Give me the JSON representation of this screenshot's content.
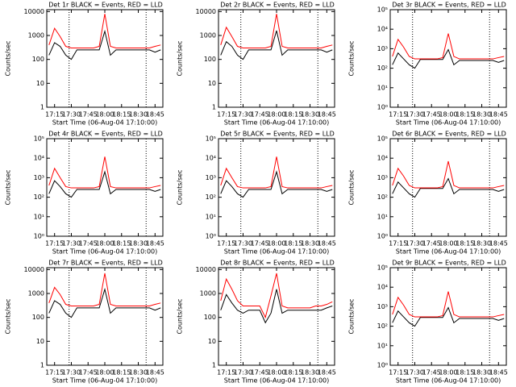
{
  "chart_data": [
    {
      "type": "line",
      "title": "Det 1r BLACK = Events, RED = LLD",
      "y_label": "Counts/sec",
      "x_label": "Start Time (06-Aug-04 17:10:00)",
      "log_y": true,
      "xlim": [
        "17:08",
        "18:52"
      ],
      "xticks": [
        "17:15",
        "17:30",
        "17:45",
        "18:00",
        "18:15",
        "18:30",
        "18:45"
      ],
      "ylim": [
        1,
        12000
      ],
      "yticks": [
        1,
        10,
        100,
        1000,
        10000
      ],
      "vlines": [
        "17:28",
        "18:37"
      ],
      "x": [
        "17:10",
        "17:15",
        "17:20",
        "17:25",
        "17:30",
        "17:35",
        "17:40",
        "17:45",
        "17:50",
        "17:55",
        "18:00",
        "18:05",
        "18:10",
        "18:15",
        "18:20",
        "18:25",
        "18:30",
        "18:35",
        "18:40",
        "18:45",
        "18:50"
      ],
      "series": [
        {
          "name": "BLACK",
          "color": "#000000",
          "values": [
            150,
            500,
            350,
            150,
            100,
            250,
            250,
            250,
            250,
            250,
            1500,
            150,
            250,
            250,
            250,
            250,
            250,
            250,
            250,
            200,
            250
          ]
        },
        {
          "name": "RED",
          "color": "#ff0000",
          "values": [
            400,
            2000,
            900,
            350,
            300,
            300,
            300,
            300,
            300,
            350,
            8000,
            350,
            300,
            300,
            300,
            300,
            300,
            300,
            300,
            350,
            400
          ]
        }
      ]
    },
    {
      "type": "line",
      "title": "Det 2r BLACK = Events, RED = LLD",
      "y_label": "Counts/sec",
      "x_label": "Start Time (06-Aug-04 17:10:00)",
      "log_y": true,
      "xlim": [
        "17:08",
        "18:52"
      ],
      "xticks": [
        "17:15",
        "17:30",
        "17:45",
        "18:00",
        "18:15",
        "18:30",
        "18:45"
      ],
      "ylim": [
        1,
        12000
      ],
      "yticks": [
        1,
        10,
        100,
        1000,
        10000
      ],
      "vlines": [
        "17:28",
        "18:37"
      ],
      "x": [
        "17:10",
        "17:15",
        "17:20",
        "17:25",
        "17:30",
        "17:35",
        "17:40",
        "17:45",
        "17:50",
        "17:55",
        "18:00",
        "18:05",
        "18:10",
        "18:15",
        "18:20",
        "18:25",
        "18:30",
        "18:35",
        "18:40",
        "18:45",
        "18:50"
      ],
      "series": [
        {
          "name": "BLACK",
          "color": "#000000",
          "values": [
            150,
            550,
            350,
            150,
            100,
            250,
            250,
            250,
            250,
            250,
            1600,
            150,
            250,
            250,
            250,
            250,
            250,
            250,
            250,
            200,
            250
          ]
        },
        {
          "name": "RED",
          "color": "#ff0000",
          "values": [
            400,
            2200,
            900,
            350,
            300,
            300,
            300,
            300,
            300,
            350,
            8000,
            350,
            300,
            300,
            300,
            300,
            300,
            300,
            300,
            350,
            400
          ]
        }
      ]
    },
    {
      "type": "line",
      "title": "Det 3r BLACK = Events, RED = LLD",
      "y_label": "Counts/sec",
      "x_label": "Start Time (06-Aug-04 17:10:00)",
      "log_y": true,
      "xlim": [
        "17:08",
        "18:52"
      ],
      "xticks": [
        "17:15",
        "17:30",
        "17:45",
        "18:00",
        "18:15",
        "18:30",
        "18:45"
      ],
      "ylim": [
        1,
        100000
      ],
      "yticks": [
        {
          "value": 1,
          "label": "10⁰"
        },
        {
          "value": 10,
          "label": "10¹"
        },
        {
          "value": 100,
          "label": "10²"
        },
        {
          "value": 1000,
          "label": "10³"
        },
        {
          "value": 10000,
          "label": "10⁴"
        },
        {
          "value": 100000,
          "label": "10⁵"
        }
      ],
      "vlines": [
        "17:28",
        "18:37"
      ],
      "x": [
        "17:10",
        "17:15",
        "17:20",
        "17:25",
        "17:30",
        "17:35",
        "17:40",
        "17:45",
        "17:50",
        "17:55",
        "18:00",
        "18:05",
        "18:10",
        "18:15",
        "18:20",
        "18:25",
        "18:30",
        "18:35",
        "18:40",
        "18:45",
        "18:50"
      ],
      "series": [
        {
          "name": "BLACK",
          "color": "#000000",
          "values": [
            150,
            600,
            300,
            150,
            100,
            280,
            280,
            280,
            280,
            280,
            900,
            150,
            250,
            250,
            250,
            250,
            250,
            250,
            250,
            200,
            250
          ]
        },
        {
          "name": "RED",
          "color": "#ff0000",
          "values": [
            400,
            3000,
            1200,
            400,
            300,
            300,
            300,
            300,
            300,
            350,
            6000,
            400,
            300,
            300,
            300,
            300,
            300,
            300,
            300,
            350,
            400
          ]
        }
      ]
    },
    {
      "type": "line",
      "title": "Det 4r BLACK = Events, RED = LLD",
      "y_label": "Counts/sec",
      "x_label": "Start Time (06-Aug-04 17:10:00)",
      "log_y": true,
      "xlim": [
        "17:08",
        "18:52"
      ],
      "xticks": [
        "17:15",
        "17:30",
        "17:45",
        "18:00",
        "18:15",
        "18:30",
        "18:45"
      ],
      "ylim": [
        1,
        100000
      ],
      "yticks": [
        {
          "value": 1,
          "label": "10⁰"
        },
        {
          "value": 10,
          "label": "10¹"
        },
        {
          "value": 100,
          "label": "10²"
        },
        {
          "value": 1000,
          "label": "10³"
        },
        {
          "value": 10000,
          "label": "10⁴"
        },
        {
          "value": 100000,
          "label": "10⁵"
        }
      ],
      "vlines": [
        "17:28",
        "18:37"
      ],
      "x": [
        "17:10",
        "17:15",
        "17:20",
        "17:25",
        "17:30",
        "17:35",
        "17:40",
        "17:45",
        "17:50",
        "17:55",
        "18:00",
        "18:05",
        "18:10",
        "18:15",
        "18:20",
        "18:25",
        "18:30",
        "18:35",
        "18:40",
        "18:45",
        "18:50"
      ],
      "series": [
        {
          "name": "BLACK",
          "color": "#000000",
          "values": [
            150,
            700,
            350,
            150,
            100,
            250,
            250,
            250,
            250,
            250,
            2000,
            150,
            250,
            250,
            250,
            250,
            250,
            250,
            250,
            200,
            250
          ]
        },
        {
          "name": "RED",
          "color": "#ff0000",
          "values": [
            400,
            3000,
            1000,
            350,
            300,
            300,
            300,
            300,
            300,
            350,
            12000,
            350,
            300,
            300,
            300,
            300,
            300,
            300,
            300,
            350,
            400
          ]
        }
      ]
    },
    {
      "type": "line",
      "title": "Det 5r BLACK = Events, RED = LLD",
      "y_label": "Counts/sec",
      "x_label": "Start Time (06-Aug-04 17:10:00)",
      "log_y": true,
      "xlim": [
        "17:08",
        "18:52"
      ],
      "xticks": [
        "17:15",
        "17:30",
        "17:45",
        "18:00",
        "18:15",
        "18:30",
        "18:45"
      ],
      "ylim": [
        1,
        100000
      ],
      "yticks": [
        {
          "value": 1,
          "label": "10⁰"
        },
        {
          "value": 10,
          "label": "10¹"
        },
        {
          "value": 100,
          "label": "10²"
        },
        {
          "value": 1000,
          "label": "10³"
        },
        {
          "value": 10000,
          "label": "10⁴"
        },
        {
          "value": 100000,
          "label": "10⁵"
        }
      ],
      "vlines": [
        "17:28",
        "18:37"
      ],
      "x": [
        "17:10",
        "17:15",
        "17:20",
        "17:25",
        "17:30",
        "17:35",
        "17:40",
        "17:45",
        "17:50",
        "17:55",
        "18:00",
        "18:05",
        "18:10",
        "18:15",
        "18:20",
        "18:25",
        "18:30",
        "18:35",
        "18:40",
        "18:45",
        "18:50"
      ],
      "series": [
        {
          "name": "BLACK",
          "color": "#000000",
          "values": [
            150,
            700,
            350,
            150,
            100,
            250,
            250,
            250,
            250,
            250,
            2000,
            150,
            250,
            250,
            250,
            250,
            250,
            250,
            250,
            200,
            250
          ]
        },
        {
          "name": "RED",
          "color": "#ff0000",
          "values": [
            400,
            3000,
            1000,
            350,
            300,
            300,
            300,
            300,
            300,
            350,
            12000,
            350,
            300,
            300,
            300,
            300,
            300,
            300,
            300,
            350,
            400
          ]
        }
      ]
    },
    {
      "type": "line",
      "title": "Det 6r BLACK = Events, RED = LLD",
      "y_label": "Counts/sec",
      "x_label": "Start Time (06-Aug-04 17:10:00)",
      "log_y": true,
      "xlim": [
        "17:08",
        "18:52"
      ],
      "xticks": [
        "17:15",
        "17:30",
        "17:45",
        "18:00",
        "18:15",
        "18:30",
        "18:45"
      ],
      "ylim": [
        1,
        100000
      ],
      "yticks": [
        {
          "value": 1,
          "label": "10⁰"
        },
        {
          "value": 10,
          "label": "10¹"
        },
        {
          "value": 100,
          "label": "10²"
        },
        {
          "value": 1000,
          "label": "10³"
        },
        {
          "value": 10000,
          "label": "10⁴"
        },
        {
          "value": 100000,
          "label": "10⁵"
        }
      ],
      "vlines": [
        "17:28",
        "18:37"
      ],
      "x": [
        "17:10",
        "17:15",
        "17:20",
        "17:25",
        "17:30",
        "17:35",
        "17:40",
        "17:45",
        "17:50",
        "17:55",
        "18:00",
        "18:05",
        "18:10",
        "18:15",
        "18:20",
        "18:25",
        "18:30",
        "18:35",
        "18:40",
        "18:45",
        "18:50"
      ],
      "series": [
        {
          "name": "BLACK",
          "color": "#000000",
          "values": [
            150,
            600,
            300,
            150,
            100,
            280,
            280,
            280,
            280,
            280,
            900,
            150,
            250,
            250,
            250,
            250,
            250,
            250,
            250,
            200,
            250
          ]
        },
        {
          "name": "RED",
          "color": "#ff0000",
          "values": [
            400,
            3000,
            1200,
            400,
            300,
            300,
            300,
            300,
            300,
            350,
            7000,
            400,
            300,
            300,
            300,
            300,
            300,
            300,
            300,
            350,
            400
          ]
        }
      ]
    },
    {
      "type": "line",
      "title": "Det 7r BLACK = Events, RED = LLD",
      "y_label": "Counts/sec",
      "x_label": "Start Time (06-Aug-04 17:10:00)",
      "log_y": true,
      "xlim": [
        "17:08",
        "18:52"
      ],
      "xticks": [
        "17:15",
        "17:30",
        "17:45",
        "18:00",
        "18:15",
        "18:30",
        "18:45"
      ],
      "ylim": [
        1,
        12000
      ],
      "yticks": [
        1,
        10,
        100,
        1000,
        10000
      ],
      "vlines": [
        "17:28",
        "18:37"
      ],
      "x": [
        "17:10",
        "17:15",
        "17:20",
        "17:25",
        "17:30",
        "17:35",
        "17:40",
        "17:45",
        "17:50",
        "17:55",
        "18:00",
        "18:05",
        "18:10",
        "18:15",
        "18:20",
        "18:25",
        "18:30",
        "18:35",
        "18:40",
        "18:45",
        "18:50"
      ],
      "series": [
        {
          "name": "BLACK",
          "color": "#000000",
          "values": [
            150,
            500,
            350,
            150,
            100,
            250,
            250,
            250,
            250,
            250,
            1500,
            150,
            250,
            250,
            250,
            250,
            250,
            250,
            250,
            200,
            250
          ]
        },
        {
          "name": "RED",
          "color": "#ff0000",
          "values": [
            400,
            1800,
            900,
            350,
            300,
            300,
            300,
            300,
            300,
            350,
            7000,
            350,
            300,
            300,
            300,
            300,
            300,
            300,
            300,
            350,
            400
          ]
        }
      ]
    },
    {
      "type": "line",
      "title": "Det 8r BLACK = Events, RED = LLD",
      "y_label": "Counts/sec",
      "x_label": "Start Time (06-Aug-04 17:10:00)",
      "log_y": true,
      "xlim": [
        "17:08",
        "18:52"
      ],
      "xticks": [
        "17:15",
        "17:30",
        "17:45",
        "18:00",
        "18:15",
        "18:30",
        "18:45"
      ],
      "ylim": [
        1,
        12000
      ],
      "yticks": [
        1,
        10,
        100,
        1000,
        10000
      ],
      "vlines": [
        "17:28",
        "18:37"
      ],
      "x": [
        "17:10",
        "17:15",
        "17:20",
        "17:25",
        "17:30",
        "17:35",
        "17:40",
        "17:45",
        "17:50",
        "17:55",
        "18:00",
        "18:05",
        "18:10",
        "18:15",
        "18:20",
        "18:25",
        "18:30",
        "18:35",
        "18:40",
        "18:45",
        "18:50"
      ],
      "series": [
        {
          "name": "BLACK",
          "color": "#000000",
          "values": [
            200,
            900,
            400,
            200,
            150,
            200,
            200,
            200,
            60,
            150,
            1500,
            150,
            200,
            200,
            200,
            200,
            200,
            200,
            200,
            250,
            300
          ]
        },
        {
          "name": "RED",
          "color": "#ff0000",
          "values": [
            500,
            4000,
            1500,
            500,
            300,
            300,
            300,
            300,
            100,
            800,
            7000,
            300,
            250,
            250,
            250,
            250,
            250,
            300,
            300,
            350,
            450
          ]
        }
      ]
    },
    {
      "type": "line",
      "title": "Det 9r BLACK = Events, RED = LLD",
      "y_label": "Counts/sec",
      "x_label": "Start Time (06-Aug-04 17:10:00)",
      "log_y": true,
      "xlim": [
        "17:08",
        "18:52"
      ],
      "xticks": [
        "17:15",
        "17:30",
        "17:45",
        "18:00",
        "18:15",
        "18:30",
        "18:45"
      ],
      "ylim": [
        1,
        100000
      ],
      "yticks": [
        {
          "value": 1,
          "label": "10⁰"
        },
        {
          "value": 10,
          "label": "10¹"
        },
        {
          "value": 100,
          "label": "10²"
        },
        {
          "value": 1000,
          "label": "10³"
        },
        {
          "value": 10000,
          "label": "10⁴"
        },
        {
          "value": 100000,
          "label": "10⁵"
        }
      ],
      "vlines": [
        "17:28",
        "18:37"
      ],
      "x": [
        "17:10",
        "17:15",
        "17:20",
        "17:25",
        "17:30",
        "17:35",
        "17:40",
        "17:45",
        "17:50",
        "17:55",
        "18:00",
        "18:05",
        "18:10",
        "18:15",
        "18:20",
        "18:25",
        "18:30",
        "18:35",
        "18:40",
        "18:45",
        "18:50"
      ],
      "series": [
        {
          "name": "BLACK",
          "color": "#000000",
          "values": [
            150,
            600,
            300,
            150,
            100,
            280,
            280,
            280,
            280,
            280,
            900,
            150,
            250,
            250,
            250,
            250,
            250,
            250,
            250,
            200,
            250
          ]
        },
        {
          "name": "RED",
          "color": "#ff0000",
          "values": [
            400,
            3000,
            1200,
            400,
            300,
            300,
            300,
            300,
            300,
            350,
            6000,
            400,
            300,
            300,
            300,
            300,
            300,
            300,
            300,
            350,
            400
          ]
        }
      ]
    }
  ]
}
